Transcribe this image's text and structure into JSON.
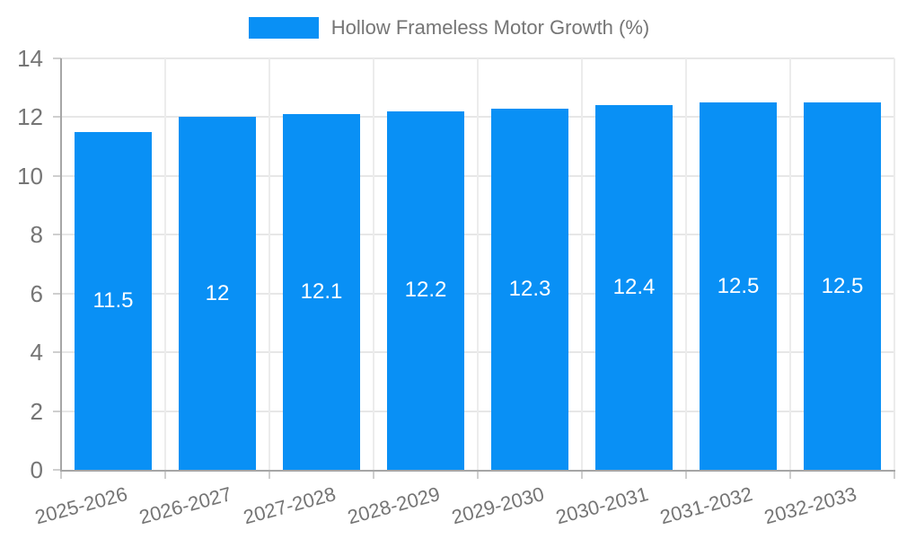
{
  "legend": {
    "label": "Hollow Frameless Motor Growth (%)",
    "swatch_color": "#0990F5"
  },
  "chart_data": {
    "type": "bar",
    "title": "Hollow Frameless Motor Growth (%)",
    "xlabel": "",
    "ylabel": "",
    "categories": [
      "2025-2026",
      "2026-2027",
      "2027-2028",
      "2028-2029",
      "2029-2030",
      "2030-2031",
      "2031-2032",
      "2032-2033"
    ],
    "values": [
      11.5,
      12,
      12.1,
      12.2,
      12.3,
      12.4,
      12.5,
      12.5
    ],
    "value_labels": [
      "11.5",
      "12",
      "12.1",
      "12.2",
      "12.3",
      "12.4",
      "12.5",
      "12.5"
    ],
    "ylim": [
      0,
      14
    ],
    "ytick_step": 2,
    "ytick_labels": [
      "0",
      "2",
      "4",
      "6",
      "8",
      "10",
      "12",
      "14"
    ],
    "grid": true,
    "legend_position": "top",
    "bar_color": "#0990F5",
    "value_label_color": "#ffffff",
    "tick_text_color": "#757575",
    "axis_color": "#a6a6a6",
    "gridline_color": "#e7e7e7",
    "x_label_rotation_deg": -15
  }
}
